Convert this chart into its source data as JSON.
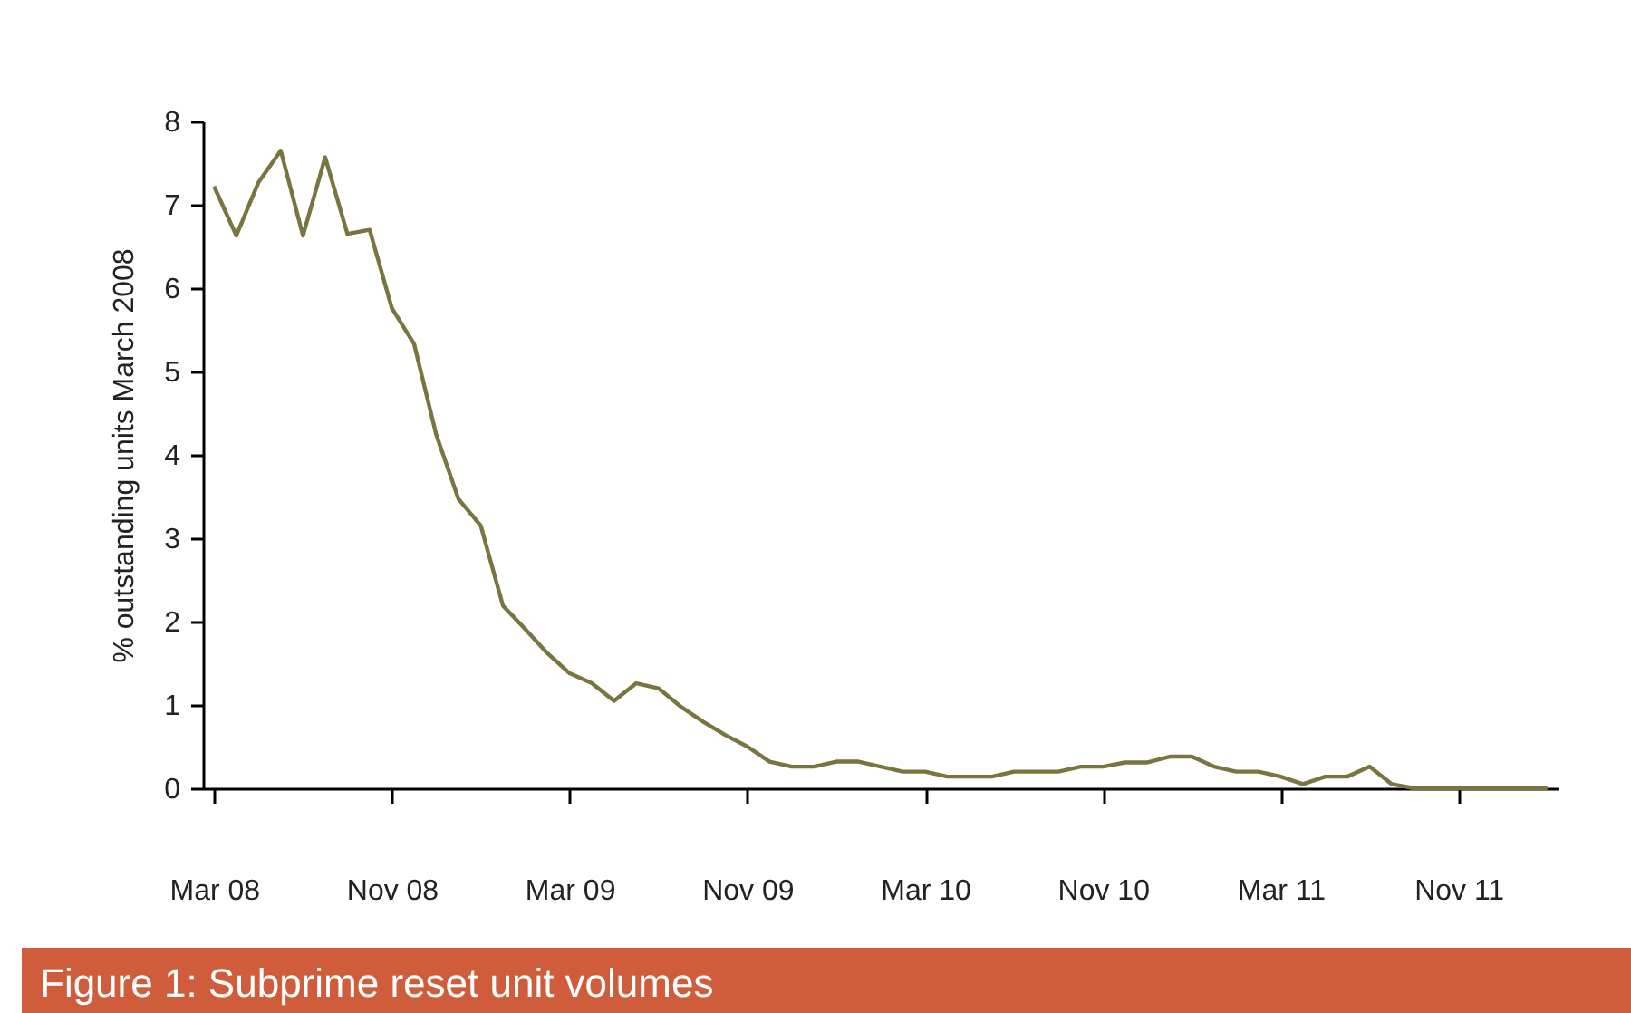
{
  "chart_data": {
    "type": "line",
    "title": "Figure 1: Subprime reset unit volumes",
    "ylabel": "% outstanding units March 2008",
    "categories": [
      "Mar 08",
      null,
      null,
      null,
      null,
      null,
      null,
      null,
      "Nov 08",
      null,
      null,
      null,
      null,
      null,
      null,
      null,
      "Mar 09",
      null,
      null,
      null,
      null,
      null,
      null,
      null,
      "Nov 09",
      null,
      null,
      null,
      null,
      null,
      null,
      null,
      "Mar 10",
      null,
      null,
      null,
      null,
      null,
      null,
      null,
      "Nov 10",
      null,
      null,
      null,
      null,
      null,
      null,
      null,
      "Mar 11",
      null,
      null,
      null,
      null,
      null,
      null,
      null,
      "Nov 11",
      null,
      null,
      null,
      null
    ],
    "series": [
      {
        "color": "#787540",
        "values": [
          7.22,
          6.63,
          7.27,
          7.65,
          6.63,
          7.57,
          6.65,
          6.7,
          5.76,
          5.33,
          4.24,
          3.47,
          3.15,
          2.19,
          1.91,
          1.62,
          1.38,
          1.26,
          1.05,
          1.26,
          1.2,
          0.98,
          0.8,
          0.64,
          0.5,
          0.32,
          0.26,
          0.26,
          0.32,
          0.32,
          0.26,
          0.2,
          0.2,
          0.14,
          0.14,
          0.14,
          0.2,
          0.2,
          0.2,
          0.26,
          0.26,
          0.31,
          0.31,
          0.38,
          0.38,
          0.26,
          0.2,
          0.2,
          0.14,
          0.05,
          0.14,
          0.14,
          0.26,
          0.05,
          0,
          0,
          0,
          0,
          0,
          0,
          0
        ]
      }
    ],
    "ylim": [
      0,
      8
    ],
    "yticks": [
      0,
      1,
      2,
      3,
      4,
      5,
      6,
      7,
      8
    ],
    "grid": false,
    "legend": false,
    "marker": "none",
    "line_style": "solid"
  }
}
